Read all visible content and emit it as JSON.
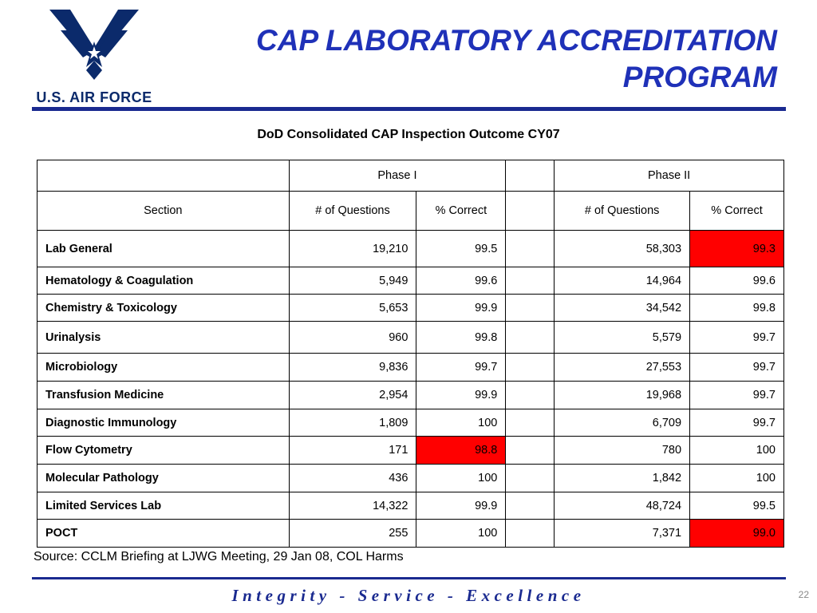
{
  "logo": {
    "text": "U.S. AIR FORCE",
    "icon": "air-force-wings-icon",
    "color": "#0b2a6b"
  },
  "title": {
    "line1": "CAP LABORATORY ACCREDITATION",
    "line2": "PROGRAM",
    "color": "#1f31b8"
  },
  "subtitle": "DoD Consolidated CAP Inspection Outcome CY07",
  "table": {
    "group_headers": {
      "phase1": "Phase I",
      "phase2": "Phase II"
    },
    "col_headers": {
      "section": "Section",
      "p1_questions": "# of Questions",
      "p1_correct": "% Correct",
      "p2_questions": "# of Questions",
      "p2_correct": "% Correct"
    },
    "highlight_color": "#ff0000",
    "rows": [
      {
        "section": "Lab General",
        "p1_q": "19,210",
        "p1_c": "99.5",
        "p2_q": "58,303",
        "p2_c": "99.3",
        "p1_flag": false,
        "p2_flag": true
      },
      {
        "section": "Hematology & Coagulation",
        "p1_q": "5,949",
        "p1_c": "99.6",
        "p2_q": "14,964",
        "p2_c": "99.6",
        "p1_flag": false,
        "p2_flag": false
      },
      {
        "section": "Chemistry & Toxicology",
        "p1_q": "5,653",
        "p1_c": "99.9",
        "p2_q": "34,542",
        "p2_c": "99.8",
        "p1_flag": false,
        "p2_flag": false
      },
      {
        "section": "Urinalysis",
        "p1_q": "960",
        "p1_c": "99.8",
        "p2_q": "5,579",
        "p2_c": "99.7",
        "p1_flag": false,
        "p2_flag": false
      },
      {
        "section": "Microbiology",
        "p1_q": "9,836",
        "p1_c": "99.7",
        "p2_q": "27,553",
        "p2_c": "99.7",
        "p1_flag": false,
        "p2_flag": false
      },
      {
        "section": "Transfusion Medicine",
        "p1_q": "2,954",
        "p1_c": "99.9",
        "p2_q": "19,968",
        "p2_c": "99.7",
        "p1_flag": false,
        "p2_flag": false
      },
      {
        "section": "Diagnostic Immunology",
        "p1_q": "1,809",
        "p1_c": "100",
        "p2_q": "6,709",
        "p2_c": "99.7",
        "p1_flag": false,
        "p2_flag": false
      },
      {
        "section": "Flow Cytometry",
        "p1_q": "171",
        "p1_c": "98.8",
        "p2_q": "780",
        "p2_c": "100",
        "p1_flag": true,
        "p2_flag": false
      },
      {
        "section": "Molecular Pathology",
        "p1_q": "436",
        "p1_c": "100",
        "p2_q": "1,842",
        "p2_c": "100",
        "p1_flag": false,
        "p2_flag": false
      },
      {
        "section": "Limited Services Lab",
        "p1_q": "14,322",
        "p1_c": "99.9",
        "p2_q": "48,724",
        "p2_c": "99.5",
        "p1_flag": false,
        "p2_flag": false
      },
      {
        "section": "POCT",
        "p1_q": "255",
        "p1_c": "100",
        "p2_q": "7,371",
        "p2_c": "99.0",
        "p1_flag": false,
        "p2_flag": true
      }
    ]
  },
  "source": "Source:  CCLM Briefing at LJWG Meeting, 29 Jan 08, COL Harms",
  "footer": {
    "motto": "Integrity - Service - Excellence",
    "page_number": "22",
    "rule_color": "#1a2a90"
  }
}
